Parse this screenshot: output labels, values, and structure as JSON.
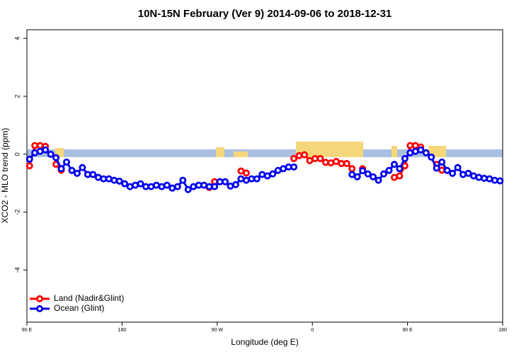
{
  "chart_data": {
    "type": "line",
    "title": "10N-15N February (Ver 9)   2014-09-06 to 2018-12-31",
    "xlabel": "Longitude (deg E)",
    "ylabel": "XCO2 - MLO trend (ppm)",
    "x": [
      92.5,
      97.5,
      102.5,
      107.5,
      112.5,
      117.5,
      122.5,
      127.5,
      132.5,
      137.5,
      142.5,
      147.5,
      152.5,
      157.5,
      162.5,
      167.5,
      172.5,
      177.5,
      182.5,
      187.5,
      192.5,
      197.5,
      202.5,
      207.5,
      212.5,
      217.5,
      222.5,
      227.5,
      232.5,
      237.5,
      242.5,
      247.5,
      252.5,
      257.5,
      262.5,
      267.5,
      272.5,
      277.5,
      282.5,
      287.5,
      292.5,
      297.5,
      302.5,
      307.5,
      312.5,
      317.5,
      322.5,
      327.5,
      332.5,
      337.5,
      342.5,
      347.5,
      352.5,
      357.5,
      362.5,
      367.5,
      372.5,
      377.5,
      382.5,
      387.5,
      392.5,
      397.5,
      402.5,
      407.5,
      412.5,
      417.5,
      422.5,
      427.5,
      432.5,
      437.5,
      442.5,
      447.5,
      452.5,
      457.5,
      462.5,
      467.5,
      472.5,
      477.5,
      482.5,
      487.5,
      492.5,
      497.5,
      502.5,
      507.5,
      512.5,
      517.5,
      522.5,
      527.5,
      532.5,
      537.5
    ],
    "series": [
      {
        "name": "Land (Nadir&Glint)",
        "color": "#ff0000",
        "values": [
          -0.4,
          0.3,
          0.3,
          0.27,
          null,
          -0.35,
          -0.55,
          null,
          null,
          null,
          null,
          null,
          null,
          null,
          null,
          null,
          null,
          null,
          null,
          null,
          null,
          null,
          null,
          null,
          null,
          null,
          null,
          null,
          null,
          null,
          null,
          null,
          null,
          null,
          -1.15,
          -0.95,
          -0.95,
          null,
          null,
          null,
          -0.58,
          -0.65,
          null,
          null,
          null,
          null,
          null,
          null,
          null,
          null,
          -0.15,
          -0.05,
          -0.02,
          -0.22,
          -0.15,
          -0.15,
          -0.28,
          -0.3,
          -0.25,
          -0.32,
          -0.32,
          -0.5,
          null,
          -0.5,
          null,
          null,
          null,
          null,
          null,
          -0.8,
          -0.75,
          -0.4,
          0.3,
          0.3,
          0.25,
          null,
          null,
          -0.35,
          -0.55,
          null,
          null,
          null,
          null,
          null,
          null,
          null,
          null,
          null,
          null,
          null
        ]
      },
      {
        "name": "Ocean (Glint)",
        "color": "#0000ee",
        "values": [
          -0.17,
          0.05,
          0.1,
          0.15,
          0,
          -0.12,
          -0.5,
          -0.27,
          -0.56,
          -0.66,
          -0.46,
          -0.7,
          -0.7,
          -0.8,
          -0.85,
          -0.85,
          -0.9,
          -0.93,
          -1.02,
          -1.12,
          -1.07,
          -1.02,
          -1.12,
          -1.12,
          -1.07,
          -1.12,
          -1.07,
          -1.17,
          -1.12,
          -0.9,
          -1.22,
          -1.12,
          -1.07,
          -1.07,
          -1.12,
          -1.12,
          -0.95,
          -0.95,
          -1.1,
          -1.05,
          -0.85,
          -0.9,
          -0.85,
          -0.85,
          -0.7,
          -0.75,
          -0.68,
          -0.56,
          -0.5,
          -0.44,
          -0.44,
          null,
          null,
          null,
          null,
          null,
          null,
          null,
          null,
          null,
          null,
          -0.7,
          -0.78,
          -0.57,
          -0.68,
          -0.78,
          -0.9,
          -0.68,
          -0.56,
          -0.35,
          -0.5,
          -0.15,
          0.05,
          0.1,
          0.15,
          0.05,
          -0.1,
          -0.48,
          -0.27,
          -0.56,
          -0.66,
          -0.46,
          -0.7,
          -0.66,
          -0.75,
          -0.8,
          -0.83,
          -0.85,
          -0.9,
          -0.92
        ]
      }
    ],
    "xlim": [
      90,
      540
    ],
    "xticks": [
      {
        "value": 90,
        "label": "90 E"
      },
      180,
      {
        "value": 270,
        "label": "90 W"
      },
      {
        "value": 360,
        "label": "0"
      },
      {
        "value": 450,
        "label": "90 E"
      },
      {
        "value": 540,
        "label": "180"
      }
    ],
    "ylim": [
      -5.8,
      4.3
    ],
    "yticks": [
      -4,
      -2,
      0,
      2,
      4
    ],
    "legend": "bottomleft"
  }
}
